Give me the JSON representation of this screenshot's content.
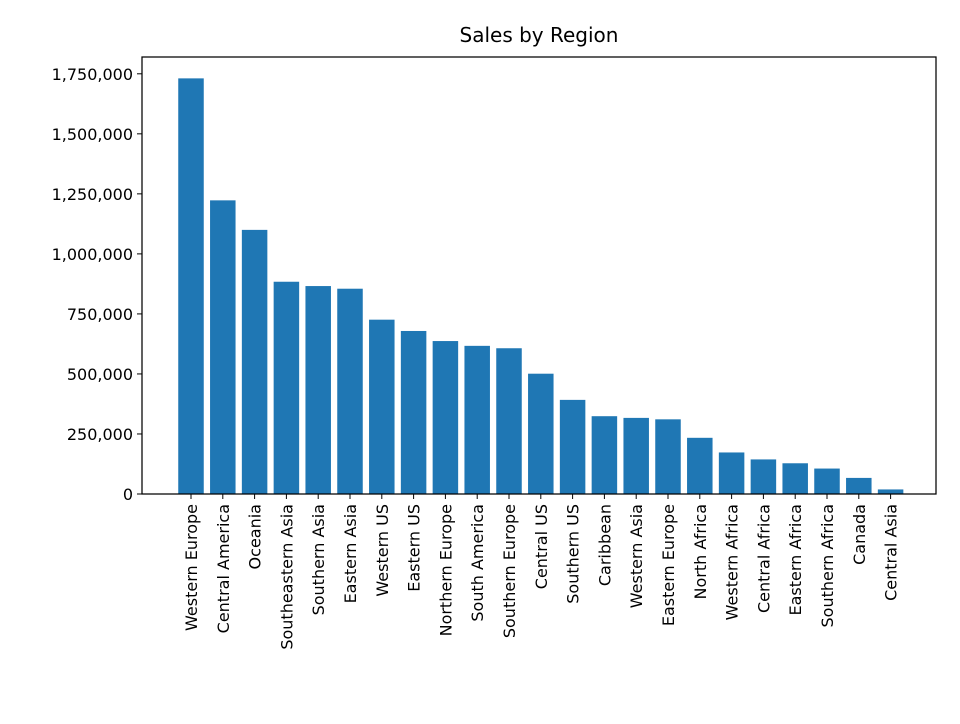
{
  "chart_data": {
    "type": "bar",
    "title": "Sales by Region",
    "xlabel": "",
    "ylabel": "",
    "categories": [
      "Western Europe",
      "Central America",
      "Oceania",
      "Southeastern Asia",
      "Southern Asia",
      "Eastern Asia",
      "Western US",
      "Eastern US",
      "Northern Europe",
      "South America",
      "Southern Europe",
      "Central US",
      "Southern US",
      "Caribbean",
      "Western Asia",
      "Eastern Europe",
      "North Africa",
      "Western Africa",
      "Central Africa",
      "Eastern Africa",
      "Southern Africa",
      "Canada",
      "Central Asia"
    ],
    "values": [
      1731000,
      1223000,
      1100000,
      884000,
      866000,
      855000,
      726000,
      679000,
      637000,
      617000,
      607000,
      501000,
      392000,
      324000,
      317000,
      311000,
      234000,
      173000,
      144000,
      128000,
      106000,
      67000,
      19000
    ],
    "ylim": [
      0,
      1820000
    ],
    "yticks": [
      0,
      250000,
      500000,
      750000,
      1000000,
      1250000,
      1500000,
      1750000
    ],
    "ytick_labels": [
      "0",
      "250,000",
      "500,000",
      "750,000",
      "1,000,000",
      "1,250,000",
      "1,500,000",
      "1,750,000"
    ],
    "grid": false,
    "legend": "none",
    "bar_color": "#1f77b4"
  }
}
